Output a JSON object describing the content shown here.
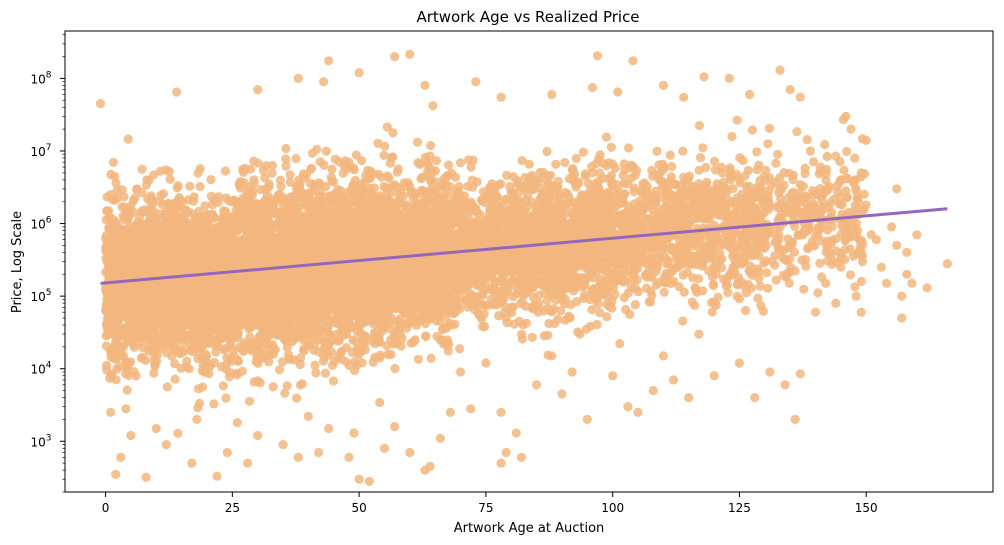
{
  "chart_data": {
    "type": "scatter",
    "title": "Artwork Age vs Realized Price",
    "xlabel": "Artwork Age at Auction",
    "ylabel": "Price, Log Scale",
    "xlim": [
      -8,
      175
    ],
    "ylim": [
      200,
      450000000
    ],
    "yscale": "log",
    "xticks": [
      0,
      25,
      50,
      75,
      100,
      125,
      150
    ],
    "yticks": [
      {
        "value": 1000,
        "label": "10^3"
      },
      {
        "value": 10000,
        "label": "10^4"
      },
      {
        "value": 100000,
        "label": "10^5"
      },
      {
        "value": 1000000,
        "label": "10^6"
      },
      {
        "value": 10000000,
        "label": "10^7"
      },
      {
        "value": 100000000,
        "label": "10^8"
      }
    ],
    "grid": false,
    "legend": "none",
    "point_color": "#f2b67e",
    "line_color": "#9467bd",
    "series": [
      {
        "kind": "points",
        "points": [
          [
            -1,
            45000000
          ],
          [
            1,
            2500
          ],
          [
            2,
            350
          ],
          [
            3,
            600
          ],
          [
            4,
            2800
          ],
          [
            5,
            1200
          ],
          [
            8,
            320
          ],
          [
            10,
            1500
          ],
          [
            12,
            900
          ],
          [
            17,
            500
          ],
          [
            18,
            2000
          ],
          [
            22,
            330
          ],
          [
            24,
            700
          ],
          [
            26,
            1800
          ],
          [
            28,
            500
          ],
          [
            30,
            1200
          ],
          [
            35,
            900
          ],
          [
            38,
            600
          ],
          [
            40,
            2200
          ],
          [
            42,
            700
          ],
          [
            44,
            1500
          ],
          [
            48,
            600
          ],
          [
            49,
            1300
          ],
          [
            50,
            300
          ],
          [
            52,
            280
          ],
          [
            55,
            800
          ],
          [
            57,
            1600
          ],
          [
            60,
            700
          ],
          [
            63,
            400
          ],
          [
            64,
            450
          ],
          [
            66,
            1100
          ],
          [
            68,
            2500
          ],
          [
            72,
            2800
          ],
          [
            78,
            2500
          ],
          [
            79,
            700
          ],
          [
            81,
            1300
          ],
          [
            82,
            600
          ],
          [
            78,
            500
          ],
          [
            14,
            65000000
          ],
          [
            30,
            70000000
          ],
          [
            38,
            100000000
          ],
          [
            43,
            90000000
          ],
          [
            44,
            175000000
          ],
          [
            50,
            120000000
          ],
          [
            57,
            200000000
          ],
          [
            60,
            215000000
          ],
          [
            63,
            80000000
          ],
          [
            73,
            90000000
          ],
          [
            78,
            55000000
          ],
          [
            88,
            60000000
          ],
          [
            96,
            75000000
          ],
          [
            97,
            205000000
          ],
          [
            101,
            65000000
          ],
          [
            104,
            175000000
          ],
          [
            110,
            80000000
          ],
          [
            114,
            55000000
          ],
          [
            118,
            105000000
          ],
          [
            123,
            100000000
          ],
          [
            127,
            60000000
          ],
          [
            133,
            130000000
          ],
          [
            135,
            70000000
          ],
          [
            137,
            55000000
          ],
          [
            139,
            10000000
          ],
          [
            141,
            6000000
          ],
          [
            145,
            4000000
          ],
          [
            146,
            30000000
          ],
          [
            147,
            20000000
          ],
          [
            149,
            5000000
          ],
          [
            150,
            14000000
          ],
          [
            150,
            1800000
          ],
          [
            152,
            600000
          ],
          [
            153,
            250000
          ],
          [
            154,
            150000
          ],
          [
            155,
            900000
          ],
          [
            156,
            3000000
          ],
          [
            156,
            500000
          ],
          [
            157,
            100000
          ],
          [
            157,
            50000
          ],
          [
            158,
            200000
          ],
          [
            158,
            400000
          ],
          [
            159,
            150000
          ],
          [
            160,
            700000
          ],
          [
            162,
            130000
          ],
          [
            166,
            280000
          ],
          [
            120,
            8000
          ],
          [
            125,
            12000
          ],
          [
            128,
            4000
          ],
          [
            134,
            6000
          ],
          [
            136,
            2000
          ],
          [
            137,
            8500
          ],
          [
            131,
            9000
          ],
          [
            140,
            60000
          ],
          [
            142,
            150000
          ],
          [
            144,
            80000
          ],
          [
            145,
            250000
          ],
          [
            148,
            100000
          ],
          [
            149,
            60000
          ],
          [
            151,
            700000
          ],
          [
            90,
            4500
          ],
          [
            95,
            2000
          ],
          [
            100,
            8000
          ],
          [
            103,
            3000
          ],
          [
            105,
            2500
          ],
          [
            108,
            5000
          ],
          [
            110,
            15000
          ],
          [
            112,
            7000
          ],
          [
            115,
            4000
          ],
          [
            117,
            30000
          ],
          [
            85,
            6000
          ],
          [
            88,
            15000
          ],
          [
            92,
            9000
          ],
          [
            70,
            9000
          ],
          [
            75,
            12000
          ]
        ]
      },
      {
        "kind": "line",
        "points": [
          [
            -1,
            150000
          ],
          [
            166,
            1600000
          ]
        ]
      }
    ]
  }
}
